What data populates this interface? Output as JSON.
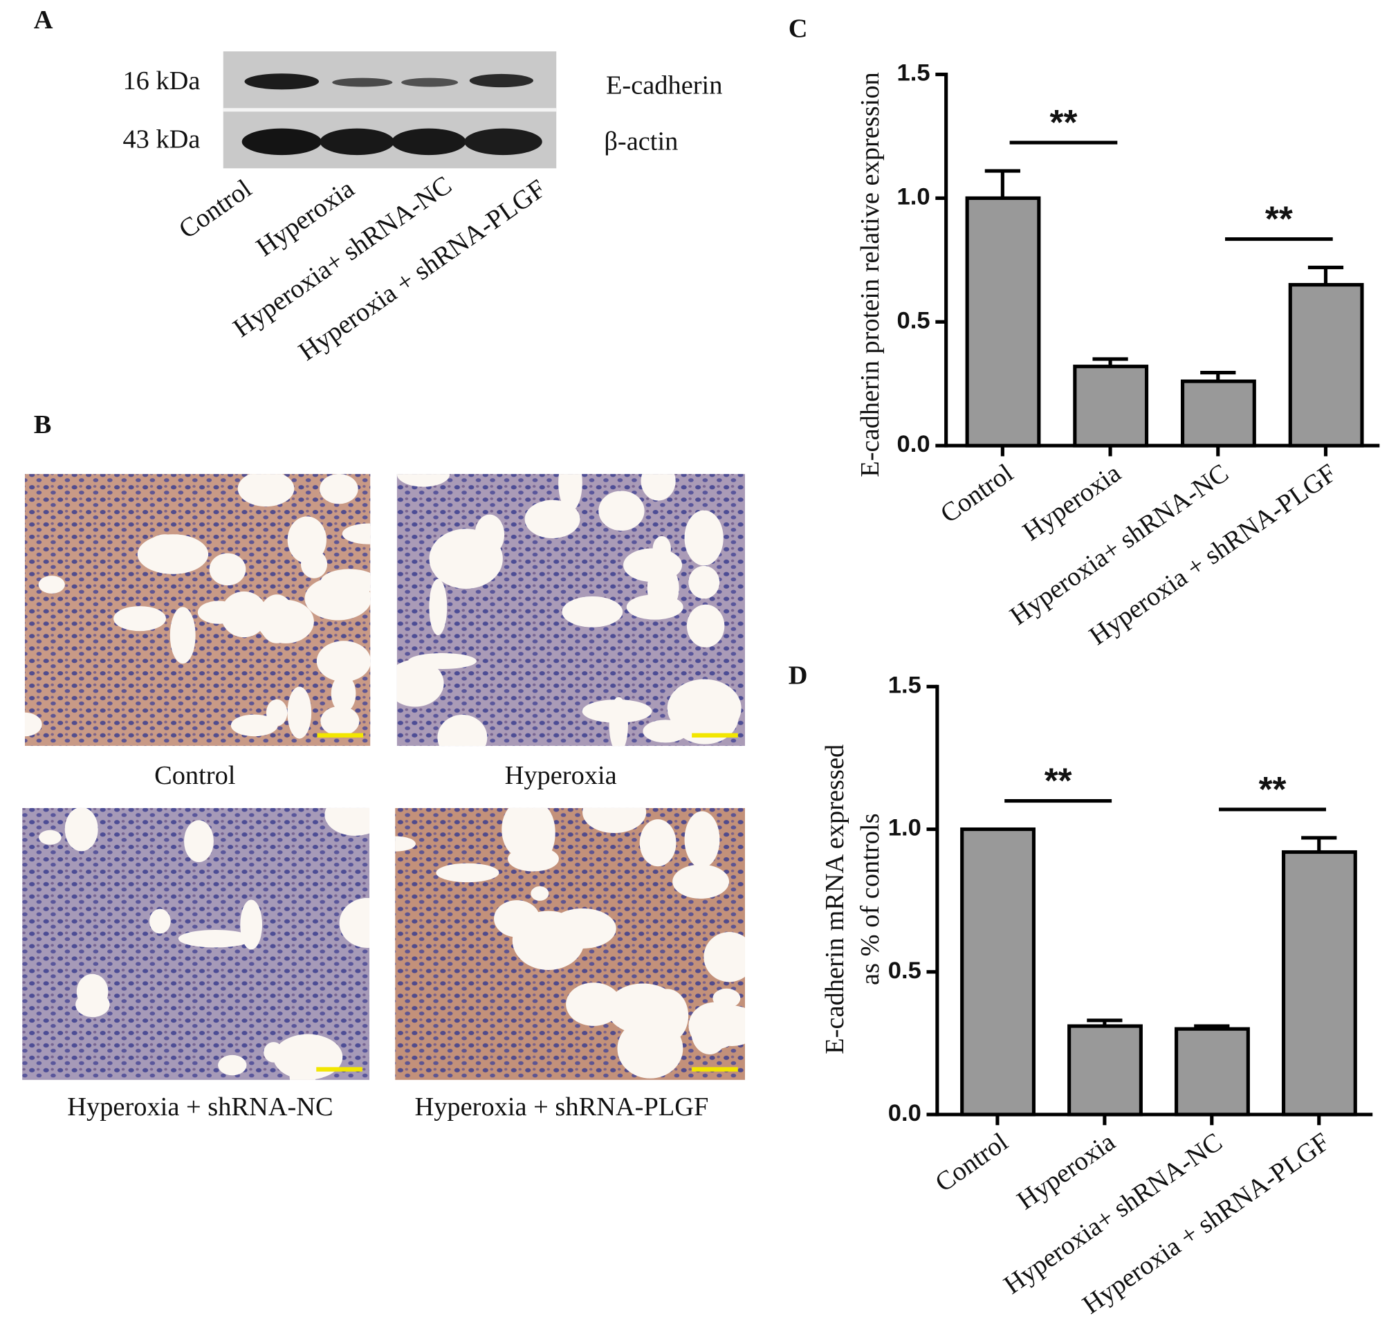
{
  "panel_a": {
    "label": "A",
    "markers": [
      "16 kDa",
      "43 kDa"
    ],
    "proteins": [
      "E-cadherin",
      "β-actin"
    ],
    "lanes": [
      "Control",
      "Hyperoxia",
      "Hyperoxia+ shRNA-NC",
      "Hyperoxia + shRNA-PLGF"
    ]
  },
  "panel_b": {
    "label": "B",
    "captions": [
      "Control",
      "Hyperoxia",
      "Hyperoxia + shRNA-NC",
      "Hyperoxia + shRNA-PLGF"
    ]
  },
  "chart_data": [
    {
      "type": "bar",
      "panel": "C",
      "ylabel": "E-cadherin protein relative expression",
      "categories": [
        "Control",
        "Hyperoxia",
        "Hyperoxia+ shRNA-NC",
        "Hyperoxia + shRNA-PLGF"
      ],
      "values": [
        1.0,
        0.32,
        0.26,
        0.65
      ],
      "errors": [
        0.11,
        0.03,
        0.035,
        0.07
      ],
      "color": "#999999",
      "ylim": [
        0,
        1.5
      ],
      "yticks": [
        {
          "value": 0,
          "label": "0.0"
        },
        {
          "value": 0.5,
          "label": "0.5"
        },
        {
          "value": 1,
          "label": "1.0"
        },
        {
          "value": 1.5,
          "label": "1.5"
        }
      ],
      "annotations": [
        "**",
        "**"
      ]
    },
    {
      "type": "bar",
      "panel": "D",
      "ylabel": [
        "E-cadherin  mRNA expressed",
        "as % of controls"
      ],
      "categories": [
        "Control",
        "Hyperoxia",
        "Hyperoxia+ shRNA-NC",
        "Hyperoxia + shRNA-PLGF"
      ],
      "values": [
        1.0,
        0.31,
        0.3,
        0.92
      ],
      "errors": [
        0,
        0.02,
        0.01,
        0.05
      ],
      "color": "#999999",
      "ylim": [
        0,
        1.5
      ],
      "yticks": [
        {
          "value": 0,
          "label": "0.0"
        },
        {
          "value": 0.5,
          "label": "0.5"
        },
        {
          "value": 1,
          "label": "1.0"
        },
        {
          "value": 1.5,
          "label": "1.5"
        }
      ],
      "annotations": [
        "**",
        "**"
      ]
    }
  ]
}
